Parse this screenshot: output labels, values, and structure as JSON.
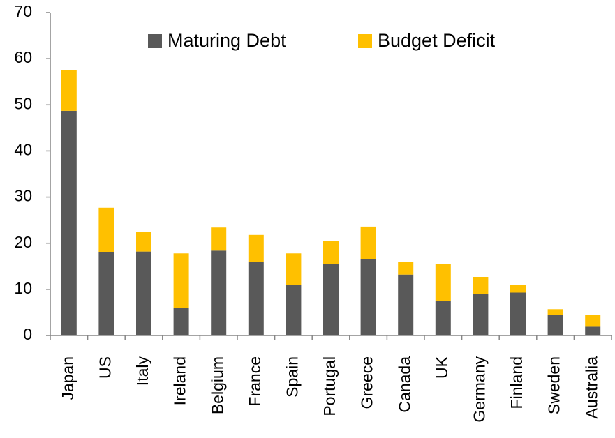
{
  "chart_data": {
    "type": "stacked_bar",
    "categories": [
      "Japan",
      "US",
      "Italy",
      "Ireland",
      "Belgium",
      "France",
      "Spain",
      "Portugal",
      "Greece",
      "Canada",
      "UK",
      "Germany",
      "Finland",
      "Sweden",
      "Australia"
    ],
    "series": [
      {
        "name": "Maturing Debt",
        "color": "#595959",
        "values": [
          48.7,
          18.0,
          18.2,
          6.0,
          18.4,
          16.0,
          11.0,
          15.5,
          16.5,
          13.2,
          7.5,
          9.0,
          9.3,
          4.4,
          1.9
        ]
      },
      {
        "name": "Budget Deficit",
        "color": "#ffc000",
        "values": [
          8.9,
          9.7,
          4.2,
          11.8,
          5.0,
          5.8,
          6.8,
          5.0,
          7.1,
          2.8,
          8.0,
          3.7,
          1.7,
          1.3,
          2.5
        ]
      }
    ],
    "ylim": [
      0,
      70
    ],
    "yticks": [
      0,
      10,
      20,
      30,
      40,
      50,
      60,
      70
    ],
    "grid": false,
    "legend": "top"
  }
}
